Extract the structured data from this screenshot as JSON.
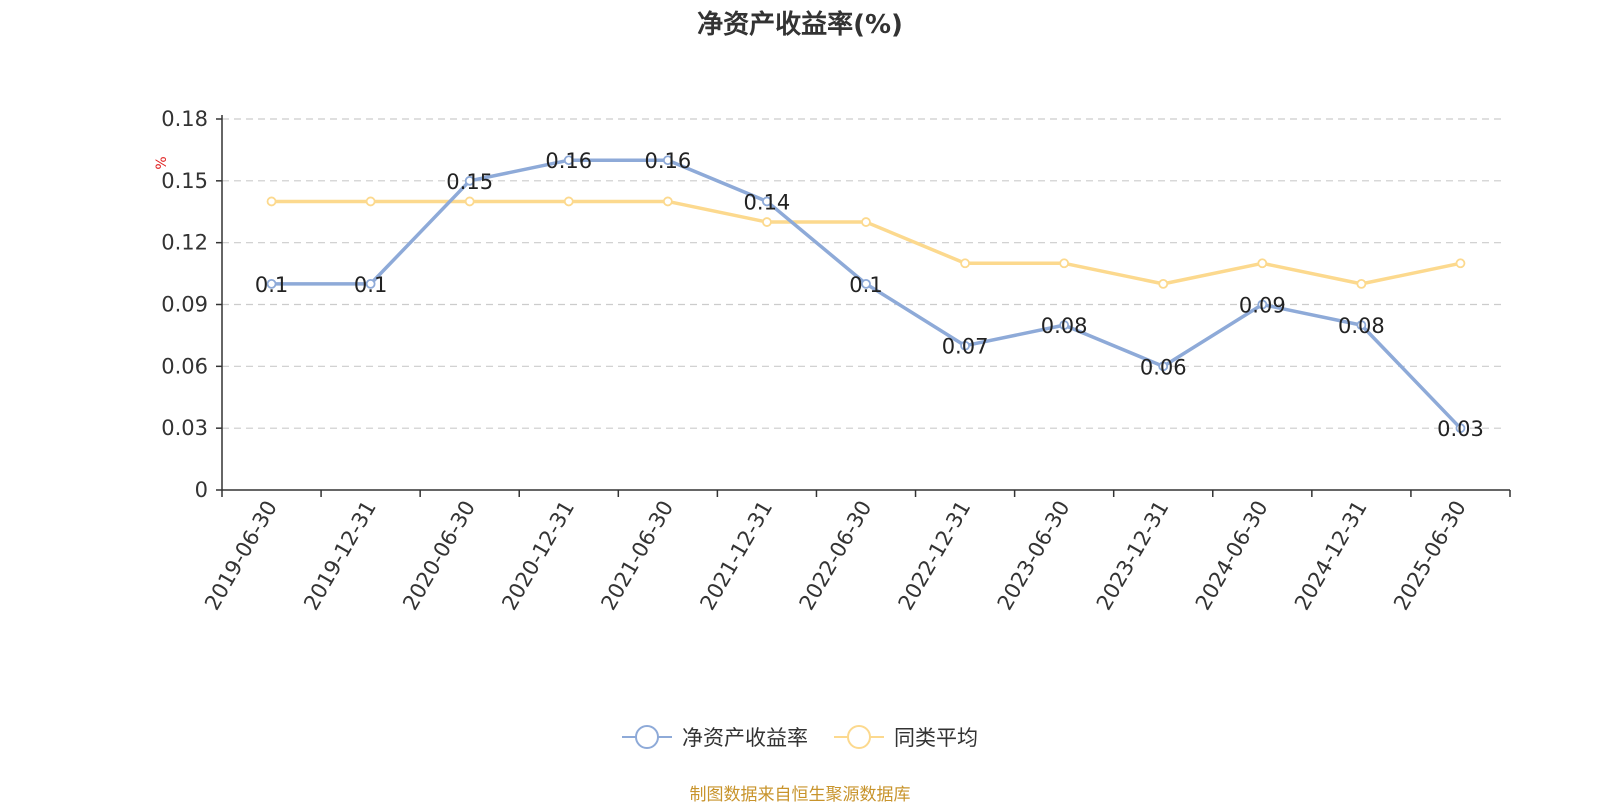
{
  "chart_data": {
    "type": "line",
    "title": "净资产收益率(%)",
    "ylabel": "%",
    "xlabel": "",
    "categories": [
      "2019-06-30",
      "2019-12-31",
      "2020-06-30",
      "2020-12-31",
      "2021-06-30",
      "2021-12-31",
      "2022-06-30",
      "2022-12-31",
      "2023-06-30",
      "2023-12-31",
      "2024-06-30",
      "2024-12-31",
      "2025-06-30"
    ],
    "ylim": [
      0,
      0.18
    ],
    "yticks": [
      "0",
      "0.03",
      "0.06",
      "0.09",
      "0.12",
      "0.15",
      "0.18"
    ],
    "grid": true,
    "legend_position": "bottom-center",
    "series": [
      {
        "name": "净资产收益率",
        "color": "#8eaad8",
        "values": [
          0.1,
          0.1,
          0.15,
          0.16,
          0.16,
          0.14,
          0.1,
          0.07,
          0.08,
          0.06,
          0.09,
          0.08,
          0.03
        ],
        "labels": [
          "0.1",
          "0.1",
          "0.15",
          "0.16",
          "0.16",
          "0.14",
          "0.1",
          "0.07",
          "0.08",
          "0.06",
          "0.09",
          "0.08",
          "0.03"
        ]
      },
      {
        "name": "同类平均",
        "color": "#fcd98e",
        "values": [
          0.14,
          0.14,
          0.14,
          0.14,
          0.14,
          0.13,
          0.13,
          0.11,
          0.11,
          0.1,
          0.11,
          0.1,
          0.11
        ]
      }
    ],
    "source": "制图数据来自恒生聚源数据库"
  }
}
